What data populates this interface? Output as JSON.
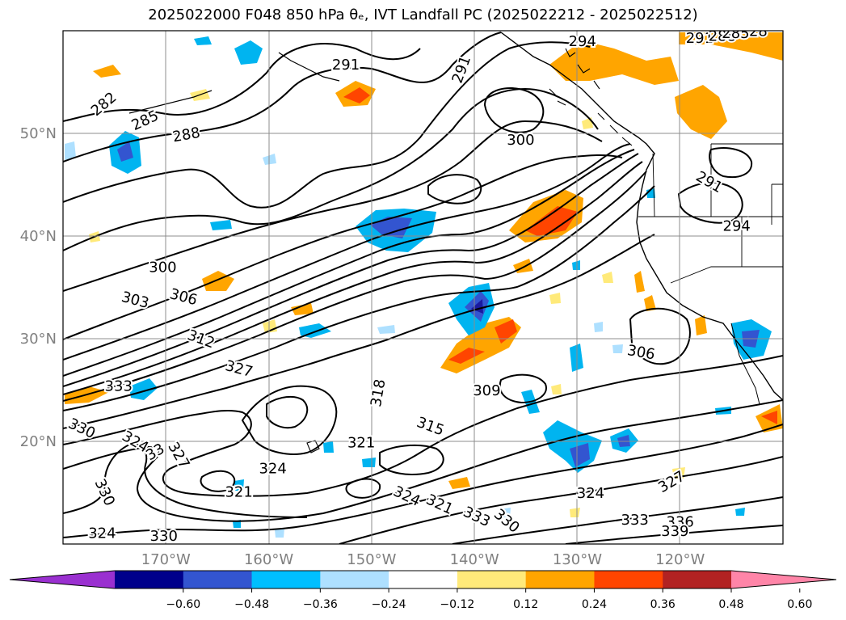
{
  "title": "2025022000 F048 850 hPa θₑ, IVT Landfall PC (2025022212 - 2025022512)",
  "colors": {
    "contour": "#000000",
    "grid": "#8c8c8c",
    "coast": "#000000",
    "shading": {
      "-0.60": "#2a0090",
      "-0.48": "#1a1aa0",
      "-0.36": "#3355d0",
      "-0.24": "#00b4f0",
      "-0.12": "#aee0ff",
      "0.12": "#ffea7a",
      "0.24": "#ffa500",
      "0.36": "#ff4500",
      "0.48": "#b22222",
      "0.60": "#ff85a8"
    }
  },
  "chart_data": {
    "type": "heatmap",
    "title": "2025022000 F048 850 hPa θₑ, IVT Landfall PC (2025022212 - 2025022512)",
    "map": {
      "lon_range": [
        -180,
        -110
      ],
      "lat_range": [
        10,
        60
      ],
      "x_ticks": [
        "170°W",
        "160°W",
        "150°W",
        "140°W",
        "130°W",
        "120°W"
      ],
      "y_ticks": [
        "20°N",
        "30°N",
        "40°N",
        "50°N"
      ],
      "grid": true
    },
    "colorbar": {
      "levels": [
        "−0.60",
        "−0.48",
        "−0.36",
        "−0.24",
        "−0.12",
        "0.12",
        "0.24",
        "0.36",
        "0.48",
        "0.60"
      ],
      "colors": [
        "#9a30d0",
        "#00008b",
        "#3355d0",
        "#00bfff",
        "#aee0ff",
        "#ffffff",
        "#ffea7a",
        "#ffa500",
        "#ff4500",
        "#b22222",
        "#ff85a8"
      ],
      "extend": "both"
    },
    "contour_labels": [
      {
        "text": "282",
        "lon": -176.0,
        "lat": 52.8,
        "rot": -40
      },
      {
        "text": "285",
        "lon": -172.0,
        "lat": 51.2,
        "rot": -25
      },
      {
        "text": "288",
        "lon": -168.0,
        "lat": 49.8,
        "rot": -10
      },
      {
        "text": "291",
        "lon": -152.5,
        "lat": 56.6,
        "rot": 0
      },
      {
        "text": "291",
        "lon": -141.2,
        "lat": 56.2,
        "rot": -70
      },
      {
        "text": "294",
        "lon": -129.5,
        "lat": 58.9,
        "rot": 0
      },
      {
        "text": "300",
        "lon": -135.5,
        "lat": 49.3,
        "rot": 0
      },
      {
        "text": "291",
        "lon": -118.1,
        "lat": 59.2,
        "rot": 0
      },
      {
        "text": "288",
        "lon": -115.9,
        "lat": 59.4,
        "rot": 0
      },
      {
        "text": "285",
        "lon": -114.6,
        "lat": 59.7,
        "rot": 0
      },
      {
        "text": "28",
        "lon": -112.4,
        "lat": 59.9,
        "rot": 0
      },
      {
        "text": "291",
        "lon": -117.2,
        "lat": 45.2,
        "rot": 30
      },
      {
        "text": "294",
        "lon": -114.5,
        "lat": 40.9,
        "rot": 0
      },
      {
        "text": "300",
        "lon": -170.3,
        "lat": 36.9,
        "rot": 0
      },
      {
        "text": "303",
        "lon": -173.0,
        "lat": 33.7,
        "rot": 15
      },
      {
        "text": "306",
        "lon": -168.3,
        "lat": 34.0,
        "rot": 15
      },
      {
        "text": "312",
        "lon": -166.6,
        "lat": 29.9,
        "rot": 20
      },
      {
        "text": "327",
        "lon": -162.9,
        "lat": 27.0,
        "rot": 15
      },
      {
        "text": "333",
        "lon": -174.6,
        "lat": 25.3,
        "rot": 0
      },
      {
        "text": "330",
        "lon": -178.2,
        "lat": 21.2,
        "rot": 25
      },
      {
        "text": "324",
        "lon": -173.0,
        "lat": 19.9,
        "rot": 30
      },
      {
        "text": "33",
        "lon": -171.0,
        "lat": 18.9,
        "rot": -30
      },
      {
        "text": "327",
        "lon": -168.8,
        "lat": 18.6,
        "rot": 60
      },
      {
        "text": "330",
        "lon": -176.0,
        "lat": 15.0,
        "rot": 65
      },
      {
        "text": "321",
        "lon": -162.9,
        "lat": 15.0,
        "rot": 0
      },
      {
        "text": "324",
        "lon": -159.6,
        "lat": 17.3,
        "rot": 0
      },
      {
        "text": "324",
        "lon": -176.2,
        "lat": 11.0,
        "rot": 0
      },
      {
        "text": "330",
        "lon": -170.2,
        "lat": 10.7,
        "rot": 0
      },
      {
        "text": "321",
        "lon": -151.0,
        "lat": 19.8,
        "rot": 0
      },
      {
        "text": "318",
        "lon": -149.3,
        "lat": 24.7,
        "rot": -80
      },
      {
        "text": "315",
        "lon": -144.3,
        "lat": 21.4,
        "rot": 20
      },
      {
        "text": "309",
        "lon": -138.8,
        "lat": 24.9,
        "rot": 0
      },
      {
        "text": "324",
        "lon": -146.6,
        "lat": 14.6,
        "rot": 25
      },
      {
        "text": "321",
        "lon": -143.4,
        "lat": 13.8,
        "rot": 25
      },
      {
        "text": "333",
        "lon": -139.8,
        "lat": 12.6,
        "rot": 25
      },
      {
        "text": "330",
        "lon": -136.9,
        "lat": 12.2,
        "rot": 40
      },
      {
        "text": "306",
        "lon": -123.8,
        "lat": 28.6,
        "rot": 10
      },
      {
        "text": "324",
        "lon": -128.7,
        "lat": 14.9,
        "rot": 0
      },
      {
        "text": "327",
        "lon": -120.8,
        "lat": 16.0,
        "rot": -30
      },
      {
        "text": "333",
        "lon": -124.4,
        "lat": 12.3,
        "rot": 0
      },
      {
        "text": "336",
        "lon": -120.0,
        "lat": 12.1,
        "rot": 0
      },
      {
        "text": "339",
        "lon": -120.5,
        "lat": 11.2,
        "rot": 0
      }
    ]
  }
}
